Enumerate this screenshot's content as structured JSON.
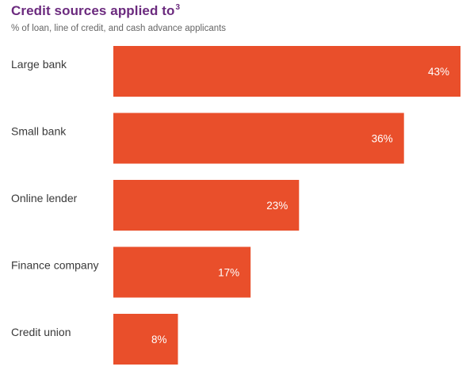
{
  "chart_data": {
    "type": "bar",
    "orientation": "horizontal",
    "title": "Credit sources applied to",
    "title_superscript": "3",
    "subtitle": "% of loan, line of credit, and cash advance applicants",
    "categories": [
      "Large bank",
      "Small bank",
      "Online lender",
      "Finance company",
      "Credit union"
    ],
    "values": [
      43,
      36,
      23,
      17,
      8
    ],
    "value_labels": [
      "43%",
      "36%",
      "23%",
      "17%",
      "8%"
    ],
    "unit": "%",
    "xlim": [
      0,
      43
    ],
    "grid": false,
    "legend": "none",
    "bar_color": "#e94f2b",
    "title_color": "#6b2a7e"
  }
}
